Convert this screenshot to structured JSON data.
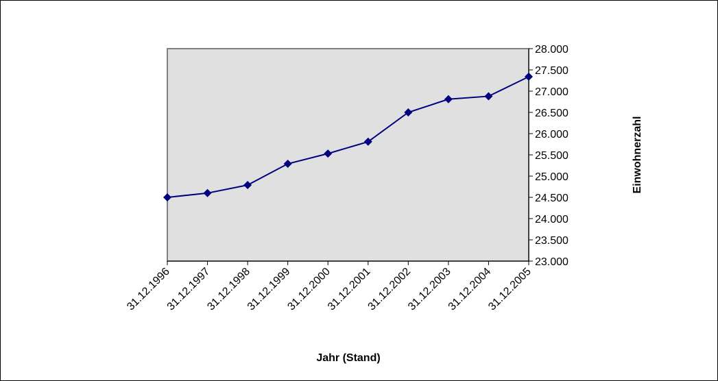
{
  "chart_data": {
    "type": "line",
    "title": "",
    "xlabel": "Jahr (Stand)",
    "ylabel": "Einwohnerzahl",
    "ylim": [
      23000,
      28000
    ],
    "y_ticks": [
      "23.000",
      "23.500",
      "24.000",
      "24.500",
      "25.000",
      "25.500",
      "26.000",
      "26.500",
      "27.000",
      "27.500",
      "28.000"
    ],
    "y_axis_side": "right",
    "x_tick_rotation": "-45deg",
    "grid": false,
    "legend": "none",
    "categories": [
      "31.12.1996",
      "31.12.1997",
      "31.12.1998",
      "31.12.1999",
      "31.12.2000",
      "31.12.2001",
      "31.12.2002",
      "31.12.2003",
      "31.12.2004",
      "31.12.2005"
    ],
    "series": [
      {
        "values": [
          24500,
          24600,
          24790,
          25290,
          25530,
          25810,
          26500,
          26810,
          26880,
          27340
        ]
      }
    ],
    "colors": {
      "plot_background": "#e0e0e0",
      "plot_border": "#808080",
      "series_line": "#000080",
      "marker": "#000080"
    },
    "marker": "diamond"
  }
}
